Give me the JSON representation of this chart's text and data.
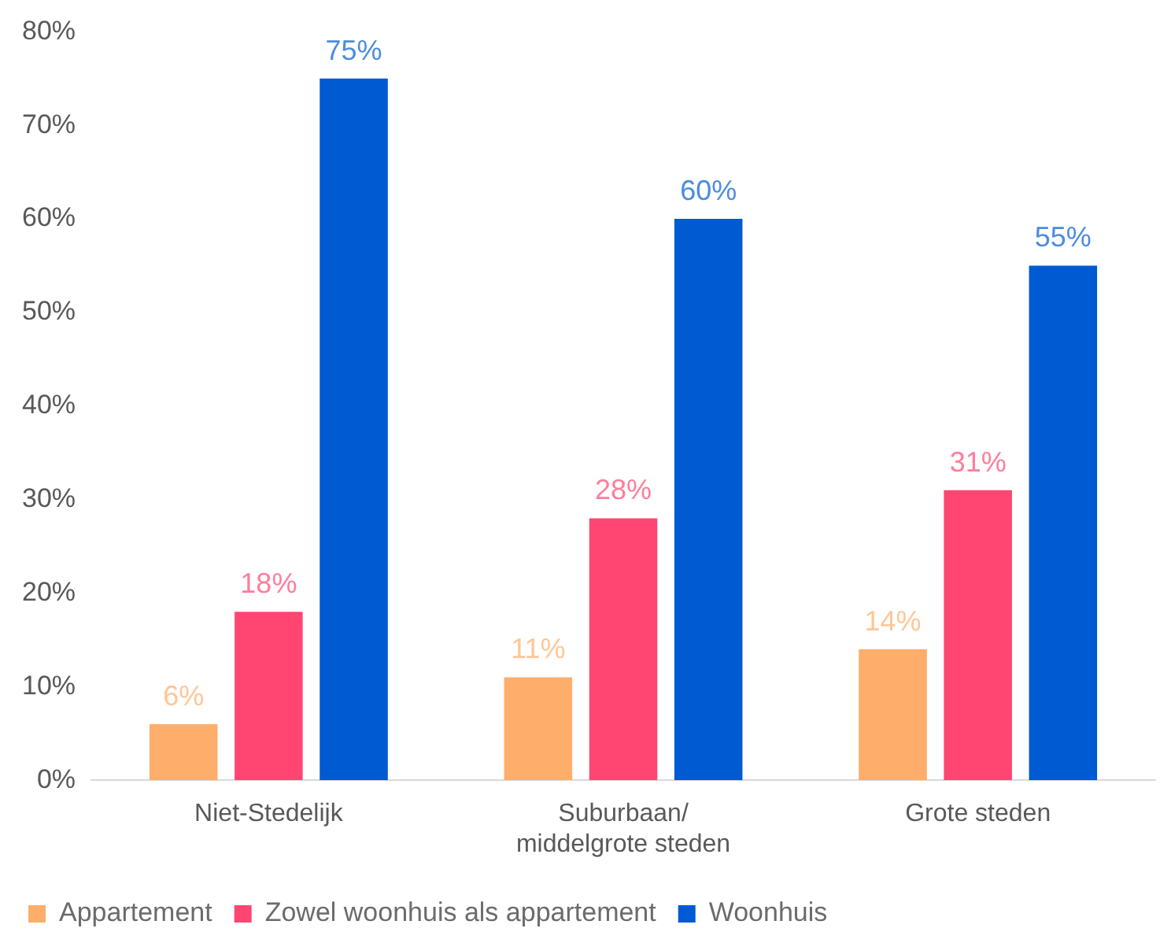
{
  "chart_data": {
    "type": "bar",
    "categories": [
      "Niet-Stedelijk",
      "Suburbaan/ middelgrote steden",
      "Grote steden"
    ],
    "series": [
      {
        "name": "Appartement",
        "color": "#ffad6b",
        "values": [
          6,
          11,
          14
        ],
        "value_labels": [
          "6%",
          "11%",
          "14%"
        ]
      },
      {
        "name": "Zowel woonhuis als appartement",
        "color": "#ff4571",
        "values": [
          18,
          28,
          31
        ],
        "value_labels": [
          "18%",
          "28%",
          "31%"
        ]
      },
      {
        "name": "Woonhuis",
        "color": "#005ad2",
        "values": [
          75,
          60,
          55
        ],
        "value_labels": [
          "75%",
          "60%",
          "55%"
        ]
      }
    ],
    "ylim": [
      0,
      80
    ],
    "yticks": [
      {
        "value": 0,
        "label": "0%"
      },
      {
        "value": 10,
        "label": "10%"
      },
      {
        "value": 20,
        "label": "20%"
      },
      {
        "value": 30,
        "label": "30%"
      },
      {
        "value": 40,
        "label": "40%"
      },
      {
        "value": 50,
        "label": "50%"
      },
      {
        "value": 60,
        "label": "60%"
      },
      {
        "value": 70,
        "label": "70%"
      },
      {
        "value": 80,
        "label": "80%"
      }
    ],
    "grid": false,
    "legend": "bottom"
  }
}
